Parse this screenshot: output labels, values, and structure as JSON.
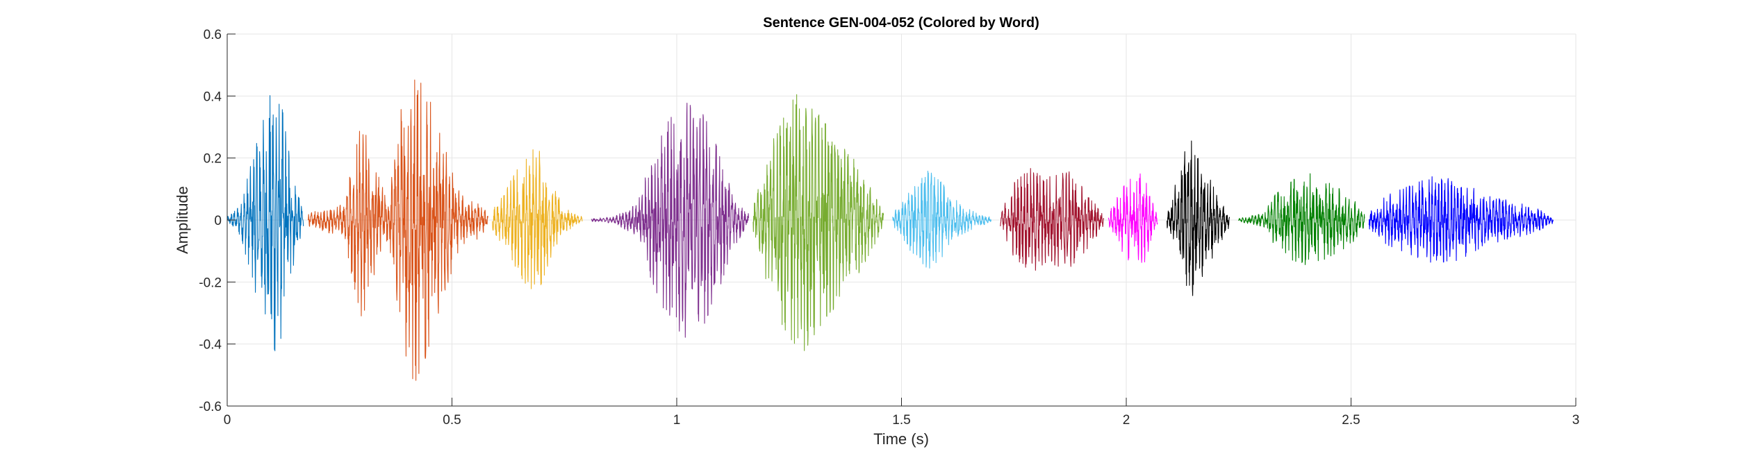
{
  "chart_data": {
    "type": "line",
    "title": "Sentence GEN-004-052 (Colored by Word)",
    "xlabel": "Time (s)",
    "ylabel": "Amplitude",
    "xlim": [
      0,
      3
    ],
    "ylim": [
      -0.6,
      0.6
    ],
    "xticks": [
      0,
      0.5,
      1,
      1.5,
      2,
      2.5,
      3
    ],
    "xtick_labels": [
      "0",
      "0.5",
      "1",
      "1.5",
      "2",
      "2.5",
      "3"
    ],
    "yticks": [
      -0.6,
      -0.4,
      -0.2,
      0,
      0.2,
      0.4,
      0.6
    ],
    "ytick_labels": [
      "-0.6",
      "-0.4",
      "-0.2",
      "0",
      "0.2",
      "0.4",
      "0.6"
    ],
    "grid": true,
    "series": [
      {
        "color": "#0072BD",
        "start": 0.0,
        "end": 0.17,
        "envelope": [
          [
            0.0,
            0.01
          ],
          [
            0.03,
            0.05
          ],
          [
            0.06,
            0.22
          ],
          [
            0.08,
            0.32
          ],
          [
            0.1,
            0.45
          ],
          [
            0.12,
            0.38
          ],
          [
            0.14,
            0.2
          ],
          [
            0.16,
            0.08
          ],
          [
            0.17,
            0.02
          ]
        ]
      },
      {
        "color": "#D95319",
        "start": 0.18,
        "end": 0.58,
        "envelope": [
          [
            0.18,
            0.02
          ],
          [
            0.22,
            0.04
          ],
          [
            0.26,
            0.05
          ],
          [
            0.28,
            0.2
          ],
          [
            0.3,
            0.32
          ],
          [
            0.33,
            0.16
          ],
          [
            0.36,
            0.07
          ],
          [
            0.38,
            0.3
          ],
          [
            0.41,
            0.55
          ],
          [
            0.44,
            0.45
          ],
          [
            0.48,
            0.25
          ],
          [
            0.52,
            0.08
          ],
          [
            0.56,
            0.06
          ],
          [
            0.58,
            0.02
          ]
        ]
      },
      {
        "color": "#EDB120",
        "start": 0.59,
        "end": 0.79,
        "envelope": [
          [
            0.59,
            0.03
          ],
          [
            0.62,
            0.1
          ],
          [
            0.66,
            0.2
          ],
          [
            0.69,
            0.24
          ],
          [
            0.72,
            0.12
          ],
          [
            0.75,
            0.04
          ],
          [
            0.79,
            0.01
          ]
        ]
      },
      {
        "color": "#7E2F8E",
        "start": 0.81,
        "end": 1.16,
        "envelope": [
          [
            0.81,
            0.005
          ],
          [
            0.86,
            0.01
          ],
          [
            0.91,
            0.05
          ],
          [
            0.94,
            0.18
          ],
          [
            0.98,
            0.32
          ],
          [
            1.02,
            0.38
          ],
          [
            1.06,
            0.34
          ],
          [
            1.1,
            0.2
          ],
          [
            1.13,
            0.08
          ],
          [
            1.16,
            0.02
          ]
        ]
      },
      {
        "color": "#77AC30",
        "start": 1.17,
        "end": 1.46,
        "envelope": [
          [
            1.17,
            0.04
          ],
          [
            1.2,
            0.2
          ],
          [
            1.24,
            0.36
          ],
          [
            1.28,
            0.43
          ],
          [
            1.32,
            0.34
          ],
          [
            1.37,
            0.25
          ],
          [
            1.41,
            0.16
          ],
          [
            1.44,
            0.08
          ],
          [
            1.46,
            0.02
          ]
        ]
      },
      {
        "color": "#4DBEEE",
        "start": 1.48,
        "end": 1.7,
        "envelope": [
          [
            1.48,
            0.02
          ],
          [
            1.52,
            0.1
          ],
          [
            1.56,
            0.16
          ],
          [
            1.59,
            0.12
          ],
          [
            1.63,
            0.05
          ],
          [
            1.67,
            0.02
          ],
          [
            1.7,
            0.01
          ]
        ]
      },
      {
        "color": "#A2142F",
        "start": 1.72,
        "end": 1.95,
        "envelope": [
          [
            1.72,
            0.02
          ],
          [
            1.75,
            0.12
          ],
          [
            1.79,
            0.17
          ],
          [
            1.83,
            0.14
          ],
          [
            1.87,
            0.16
          ],
          [
            1.91,
            0.1
          ],
          [
            1.95,
            0.02
          ]
        ]
      },
      {
        "color": "#FF00FF",
        "start": 1.96,
        "end": 2.07,
        "envelope": [
          [
            1.96,
            0.02
          ],
          [
            1.99,
            0.1
          ],
          [
            2.02,
            0.16
          ],
          [
            2.04,
            0.14
          ],
          [
            2.06,
            0.05
          ],
          [
            2.07,
            0.01
          ]
        ]
      },
      {
        "color": "#000000",
        "start": 2.09,
        "end": 2.23,
        "envelope": [
          [
            2.09,
            0.02
          ],
          [
            2.11,
            0.12
          ],
          [
            2.14,
            0.27
          ],
          [
            2.17,
            0.18
          ],
          [
            2.2,
            0.1
          ],
          [
            2.23,
            0.02
          ]
        ]
      },
      {
        "color": "#008000",
        "start": 2.25,
        "end": 2.53,
        "envelope": [
          [
            2.25,
            0.005
          ],
          [
            2.3,
            0.02
          ],
          [
            2.33,
            0.08
          ],
          [
            2.37,
            0.13
          ],
          [
            2.41,
            0.15
          ],
          [
            2.45,
            0.12
          ],
          [
            2.5,
            0.08
          ],
          [
            2.53,
            0.02
          ]
        ]
      },
      {
        "color": "#0000FF",
        "start": 2.54,
        "end": 2.95,
        "envelope": [
          [
            2.54,
            0.03
          ],
          [
            2.58,
            0.08
          ],
          [
            2.63,
            0.11
          ],
          [
            2.68,
            0.14
          ],
          [
            2.74,
            0.13
          ],
          [
            2.8,
            0.08
          ],
          [
            2.86,
            0.06
          ],
          [
            2.91,
            0.04
          ],
          [
            2.95,
            0.01
          ]
        ]
      }
    ]
  }
}
